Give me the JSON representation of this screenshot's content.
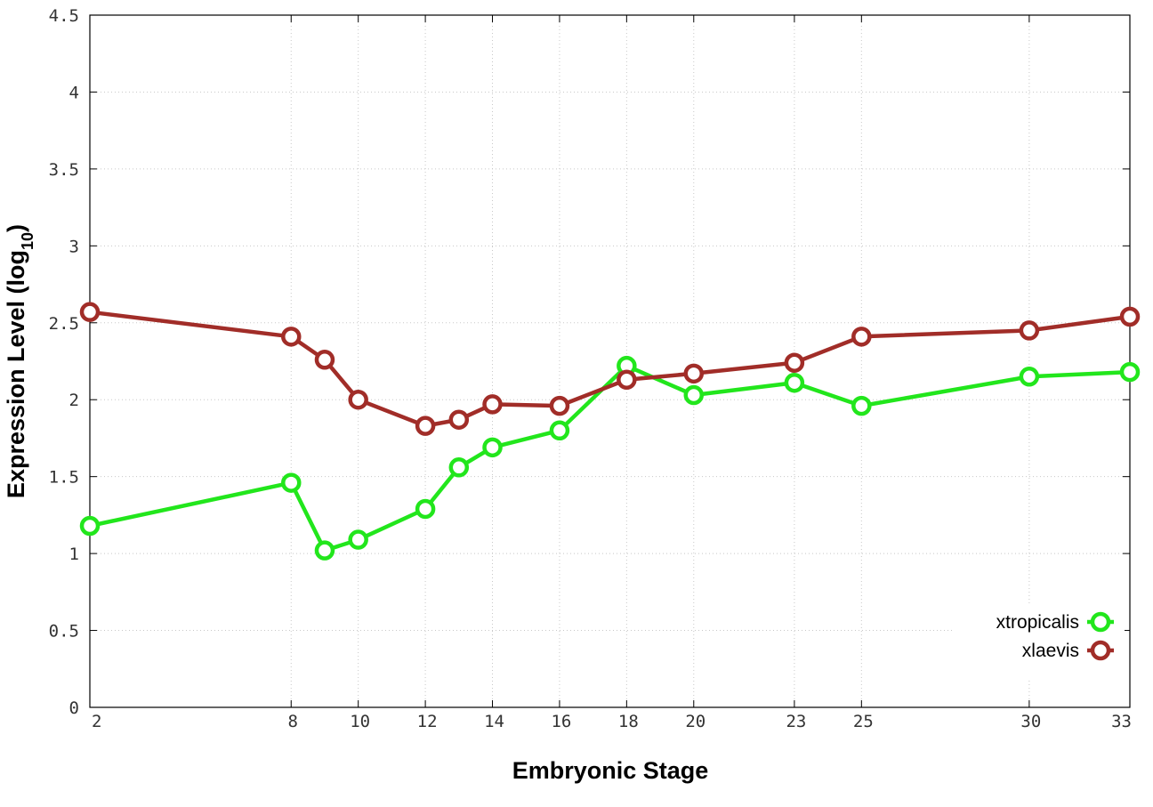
{
  "chart_data": {
    "type": "line",
    "title": "",
    "xlabel": "Embryonic Stage",
    "ylabel": {
      "main": "Expression Level (log",
      "sub": "10",
      "close": ")"
    },
    "x": [
      2,
      8,
      9,
      10,
      12,
      13,
      14,
      16,
      18,
      20,
      23,
      25,
      30,
      33
    ],
    "x_tick_labels": [
      "2",
      "8",
      "10",
      "12",
      "14",
      "16",
      "18",
      "20",
      "23",
      "25",
      "30",
      "33"
    ],
    "x_tick_values": [
      2,
      8,
      10,
      12,
      14,
      16,
      18,
      20,
      23,
      25,
      30,
      33
    ],
    "xlim": [
      2,
      33
    ],
    "ylim": [
      0,
      4.5
    ],
    "y_tick_labels": [
      "0",
      "0.5",
      "1",
      "1.5",
      "2",
      "2.5",
      "3",
      "3.5",
      "4",
      "4.5"
    ],
    "y_tick_values": [
      0,
      0.5,
      1,
      1.5,
      2,
      2.5,
      3,
      3.5,
      4,
      4.5
    ],
    "grid": true,
    "legend_position": "bottom-right",
    "series": [
      {
        "name": "xtropicalis",
        "color": "#22e61c",
        "marker": "open-circle",
        "values": [
          1.18,
          1.46,
          1.02,
          1.09,
          1.29,
          1.56,
          1.69,
          1.8,
          2.22,
          2.03,
          2.11,
          1.96,
          2.15,
          2.18
        ]
      },
      {
        "name": "xlaevis",
        "color": "#a12d28",
        "marker": "open-circle",
        "values": [
          2.57,
          2.41,
          2.26,
          2.0,
          1.83,
          1.87,
          1.97,
          1.96,
          2.13,
          2.17,
          2.24,
          2.41,
          2.45,
          2.54
        ]
      }
    ]
  }
}
